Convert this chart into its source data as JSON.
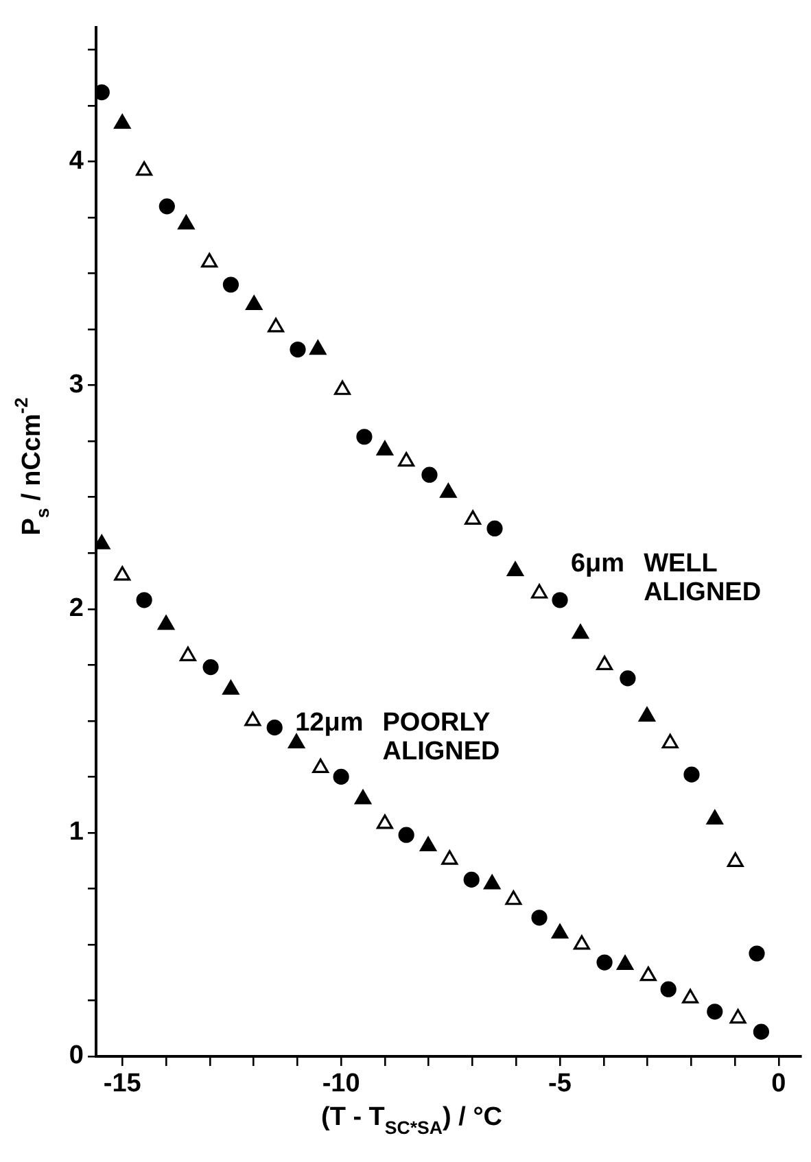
{
  "chart_data": {
    "type": "scatter",
    "xlabel": "(T - T$_{SC*SA}$) / °C",
    "ylabel": "P$_{s}$ / nCcm$^{-2}$",
    "xlim": [
      -15.6,
      0.5
    ],
    "ylim": [
      0,
      4.6
    ],
    "xticks": [
      -15,
      {
        "value": -14,
        "label": null
      },
      {
        "value": -13,
        "label": null
      },
      {
        "value": -12,
        "label": null
      },
      {
        "value": -11,
        "label": null
      },
      -10,
      {
        "value": -9,
        "label": null
      },
      {
        "value": -8,
        "label": null
      },
      {
        "value": -7,
        "label": null
      },
      {
        "value": -6,
        "label": null
      },
      -5,
      {
        "value": -4,
        "label": null
      },
      {
        "value": -3,
        "label": null
      },
      {
        "value": -2,
        "label": null
      },
      {
        "value": -1,
        "label": null
      },
      0
    ],
    "yticks": [
      0,
      {
        "value": 0.25,
        "label": null
      },
      {
        "value": 0.5,
        "label": null
      },
      {
        "value": 0.75,
        "label": null
      },
      1,
      {
        "value": 1.25,
        "label": null
      },
      {
        "value": 1.5,
        "label": null
      },
      {
        "value": 1.75,
        "label": null
      },
      2,
      {
        "value": 2.25,
        "label": null
      },
      {
        "value": 2.5,
        "label": null
      },
      {
        "value": 2.75,
        "label": null
      },
      3,
      {
        "value": 3.25,
        "label": null
      },
      {
        "value": 3.5,
        "label": null
      },
      {
        "value": 3.75,
        "label": null
      },
      4,
      {
        "value": 4.25,
        "label": null
      },
      {
        "value": 4.5,
        "label": null
      }
    ],
    "grid": false,
    "legend": false,
    "series": [
      {
        "color": "#000000",
        "marker": "circle",
        "x": [
          -15.47,
          -13.98,
          -12.52,
          -10.99,
          -9.47,
          -7.98,
          -6.49,
          -5.0,
          -3.45,
          -1.99,
          -0.5,
          -14.5,
          -12.98,
          -11.52,
          -10.0,
          -8.51,
          -7.02,
          -5.47,
          -3.98,
          -2.52,
          -1.46,
          -0.4
        ],
        "values": [
          4.31,
          3.8,
          3.45,
          3.16,
          2.77,
          2.6,
          2.36,
          2.04,
          1.69,
          1.26,
          0.46,
          2.04,
          1.74,
          1.47,
          1.25,
          0.99,
          0.79,
          0.62,
          0.42,
          0.3,
          0.2,
          0.11
        ]
      },
      {
        "color": "#000000",
        "marker": "triangle",
        "x": [
          -15.0,
          -13.54,
          -11.99,
          -10.53,
          -9.0,
          -7.55,
          -6.02,
          -4.53,
          -3.01,
          -1.46,
          -15.47,
          -14.0,
          -12.52,
          -11.02,
          -9.5,
          -8.01,
          -6.55,
          -5.0,
          -3.51
        ],
        "values": [
          4.17,
          3.72,
          3.36,
          3.16,
          2.71,
          2.52,
          2.17,
          1.89,
          1.52,
          1.06,
          2.29,
          1.93,
          1.64,
          1.4,
          1.15,
          0.94,
          0.77,
          0.55,
          0.41
        ]
      },
      {
        "color": "#ffffff",
        "marker": "triangle",
        "x": [
          -14.5,
          -13.01,
          -11.49,
          -9.97,
          -8.51,
          -6.99,
          -5.47,
          -3.98,
          -2.48,
          -0.99,
          -15.0,
          -13.5,
          -12.02,
          -10.47,
          -9.0,
          -7.52,
          -6.06,
          -4.5,
          -2.98,
          -2.02,
          -0.93
        ],
        "values": [
          3.96,
          3.55,
          3.26,
          2.98,
          2.66,
          2.4,
          2.07,
          1.75,
          1.4,
          0.87,
          2.15,
          1.79,
          1.5,
          1.29,
          1.04,
          0.88,
          0.7,
          0.5,
          0.36,
          0.26,
          0.17
        ]
      }
    ],
    "annotations": [
      "6μm WELL\nALIGNED",
      "12μm POORLY\nALIGNED"
    ]
  }
}
